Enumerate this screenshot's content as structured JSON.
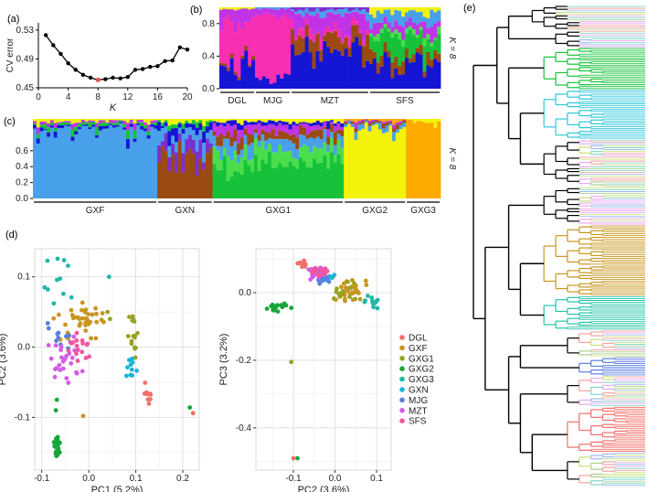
{
  "panel_labels": {
    "a": "(a)",
    "b": "(b)",
    "c": "(c)",
    "d": "(d)",
    "e": "(e)"
  },
  "chart_data": [
    {
      "id": "a",
      "type": "line",
      "xlabel": "K",
      "ylabel": "CV error",
      "x_ticks": [
        0,
        4,
        8,
        12,
        16,
        20
      ],
      "y_ticks": [
        0.45,
        0.49,
        0.53
      ],
      "xlim": [
        0,
        20
      ],
      "ylim": [
        0.45,
        0.54
      ],
      "x": [
        1,
        2,
        3,
        4,
        5,
        6,
        7,
        8,
        9,
        10,
        11,
        12,
        13,
        14,
        15,
        16,
        17,
        18,
        19,
        20
      ],
      "y": [
        0.523,
        0.509,
        0.497,
        0.484,
        0.475,
        0.468,
        0.464,
        0.461,
        0.462,
        0.464,
        0.463,
        0.465,
        0.475,
        0.476,
        0.479,
        0.48,
        0.487,
        0.488,
        0.506,
        0.503
      ],
      "highlight": {
        "x": 8,
        "y": 0.461,
        "color": "#e15759"
      }
    },
    {
      "id": "b",
      "type": "bar",
      "subtype": "stacked-admixture",
      "k_label": "K = 8",
      "y_ticks": [
        0.0,
        0.4,
        0.8
      ],
      "ylim": [
        0,
        1
      ],
      "groups": [
        {
          "label": "DGL",
          "n": 10
        },
        {
          "label": "MJG",
          "n": 10
        },
        {
          "label": "MZT",
          "n": 22
        },
        {
          "label": "SFS",
          "n": 20
        }
      ],
      "components": [
        "blue",
        "brown",
        "pink",
        "magenta",
        "green",
        "lightgreen",
        "yellow",
        "skyblue",
        "navy",
        "purple"
      ],
      "colors": {
        "blue": "#1515d4",
        "brown": "#9b4a11",
        "pink": "#f72fb0",
        "magenta": "#c034e6",
        "green": "#17c23a",
        "lightgreen": "#4cdd4c",
        "yellow": "#f2f20a",
        "skyblue": "#49a0ea",
        "navy": "#0d0d6e",
        "purple": "#7d2fd0",
        "orange": "#ffaa00"
      },
      "composition": [
        {
          "group": "DGL",
          "blue": 0.28,
          "brown": 0.04,
          "pink": 0.52,
          "magenta": 0.14,
          "yellow": 0.02
        },
        {
          "group": "MJG",
          "blue": 0.18,
          "pink": 0.72,
          "magenta": 0.08,
          "skyblue": 0.02
        },
        {
          "group": "MZT",
          "blue": 0.48,
          "brown": 0.18,
          "pink": 0.08,
          "magenta": 0.18,
          "skyblue": 0.05,
          "purple": 0.03
        },
        {
          "group": "SFS",
          "blue": 0.32,
          "brown": 0.12,
          "green": 0.2,
          "lightgreen": 0.06,
          "magenta": 0.12,
          "skyblue": 0.12,
          "yellow": 0.06
        }
      ]
    },
    {
      "id": "c",
      "type": "bar",
      "subtype": "stacked-admixture",
      "k_label": "K = 8",
      "y_ticks": [
        0.0,
        0.2,
        0.4,
        0.6
      ],
      "ylim": [
        0,
        1
      ],
      "groups": [
        {
          "label": "GXF",
          "n": 36
        },
        {
          "label": "GXN",
          "n": 16
        },
        {
          "label": "GXG1",
          "n": 38
        },
        {
          "label": "GXG2",
          "n": 18
        },
        {
          "label": "GXG3",
          "n": 10
        }
      ],
      "composition": [
        {
          "group": "GXF",
          "skyblue": 0.86,
          "blue": 0.04,
          "green": 0.04,
          "magenta": 0.03,
          "yellow": 0.03
        },
        {
          "group": "GXN",
          "brown": 0.52,
          "purple": 0.16,
          "skyblue": 0.16,
          "blue": 0.08,
          "green": 0.04,
          "yellow": 0.04
        },
        {
          "group": "GXG1",
          "green": 0.44,
          "lightgreen": 0.16,
          "skyblue": 0.14,
          "brown": 0.1,
          "magenta": 0.08,
          "blue": 0.04,
          "yellow": 0.04
        },
        {
          "group": "GXG2",
          "yellow": 0.88,
          "skyblue": 0.05,
          "brown": 0.03,
          "magenta": 0.02,
          "orange": 0.02
        },
        {
          "group": "GXG3",
          "orange": 0.96,
          "yellow": 0.04
        }
      ]
    },
    {
      "id": "d1",
      "type": "scatter",
      "xlabel": "PC1 (5.2%)",
      "ylabel": "PC2 (3.6%)",
      "x_ticks": [
        -0.1,
        0.0,
        0.1,
        0.2
      ],
      "x_tick_labels": [
        "-0.1",
        "0.0",
        "0.1",
        "0.2"
      ],
      "y_ticks": [
        -0.1,
        0.0,
        0.1
      ],
      "y_tick_labels": [
        "-0.1",
        "0.0",
        "0.1"
      ],
      "xlim": [
        -0.115,
        0.235
      ],
      "ylim": [
        -0.175,
        0.14
      ],
      "clusters": [
        {
          "name": "DGL",
          "cx": 0.123,
          "cy": -0.07,
          "sx": 0.008,
          "sy": 0.01,
          "n": 10,
          "extra": [
            [
              0.222,
              -0.094
            ]
          ]
        },
        {
          "name": "GXF",
          "cx": -0.01,
          "cy": 0.04,
          "sx": 0.035,
          "sy": 0.018,
          "n": 38,
          "extra": [
            [
              -0.012,
              -0.098
            ]
          ]
        },
        {
          "name": "GXG1",
          "cx": 0.095,
          "cy": 0.01,
          "sx": 0.007,
          "sy": 0.022,
          "n": 16,
          "extra": [
            [
              0.04,
              0.05
            ],
            [
              0.045,
              0.04
            ]
          ]
        },
        {
          "name": "GXG2",
          "cx": -0.068,
          "cy": -0.145,
          "sx": 0.006,
          "sy": 0.013,
          "n": 20,
          "extra": [
            [
              -0.07,
              -0.09
            ],
            [
              -0.068,
              -0.075
            ],
            [
              0.215,
              -0.086
            ]
          ]
        },
        {
          "name": "GXG3",
          "cx": -0.065,
          "cy": 0.09,
          "sx": 0.02,
          "sy": 0.02,
          "n": 10,
          "extra": [
            [
              -0.088,
              0.123
            ],
            [
              0.043,
              0.1
            ]
          ]
        },
        {
          "name": "GXN",
          "cx": 0.09,
          "cy": -0.03,
          "sx": 0.008,
          "sy": 0.015,
          "n": 10,
          "extra": []
        },
        {
          "name": "MJG",
          "cx": -0.06,
          "cy": 0.005,
          "sx": 0.018,
          "sy": 0.02,
          "n": 10,
          "extra": []
        },
        {
          "name": "MZT",
          "cx": -0.05,
          "cy": -0.015,
          "sx": 0.02,
          "sy": 0.02,
          "n": 26,
          "extra": []
        },
        {
          "name": "SFS",
          "cx": -0.025,
          "cy": -0.005,
          "sx": 0.018,
          "sy": 0.016,
          "n": 16,
          "extra": []
        }
      ]
    },
    {
      "id": "d2",
      "type": "scatter",
      "xlabel": "PC2 (3.6%)",
      "ylabel": "PC3 (3.2%)",
      "x_ticks": [
        -0.1,
        0.0,
        0.1
      ],
      "x_tick_labels": [
        "-0.1",
        "0.0",
        "0.1"
      ],
      "y_ticks": [
        0.0,
        -0.2,
        -0.4
      ],
      "y_tick_labels": [
        "0.0",
        "-0.2",
        "-0.4"
      ],
      "xlim": [
        -0.19,
        0.135
      ],
      "ylim": [
        -0.525,
        0.13
      ],
      "clusters": [
        {
          "name": "DGL",
          "cx": -0.08,
          "cy": 0.08,
          "sx": 0.008,
          "sy": 0.012,
          "n": 10,
          "extra": [
            [
              -0.1,
              -0.49
            ]
          ]
        },
        {
          "name": "GXF",
          "cx": 0.035,
          "cy": 0.005,
          "sx": 0.025,
          "sy": 0.02,
          "n": 30,
          "extra": []
        },
        {
          "name": "GXG1",
          "cx": 0.02,
          "cy": 0.01,
          "sx": 0.025,
          "sy": 0.02,
          "n": 14,
          "extra": [
            [
              -0.105,
              -0.205
            ]
          ]
        },
        {
          "name": "GXG2",
          "cx": -0.14,
          "cy": -0.045,
          "sx": 0.018,
          "sy": 0.008,
          "n": 16,
          "extra": [
            [
              -0.105,
              -0.045
            ],
            [
              -0.09,
              -0.49
            ]
          ]
        },
        {
          "name": "GXG3",
          "cx": 0.09,
          "cy": -0.03,
          "sx": 0.015,
          "sy": 0.012,
          "n": 12,
          "extra": []
        },
        {
          "name": "GXN",
          "cx": -0.02,
          "cy": 0.05,
          "sx": 0.015,
          "sy": 0.012,
          "n": 8,
          "extra": []
        },
        {
          "name": "MJG",
          "cx": -0.03,
          "cy": 0.045,
          "sx": 0.018,
          "sy": 0.012,
          "n": 10,
          "extra": []
        },
        {
          "name": "MZT",
          "cx": -0.04,
          "cy": 0.06,
          "sx": 0.018,
          "sy": 0.012,
          "n": 24,
          "extra": []
        },
        {
          "name": "SFS",
          "cx": -0.03,
          "cy": 0.065,
          "sx": 0.018,
          "sy": 0.01,
          "n": 14,
          "extra": []
        }
      ]
    },
    {
      "id": "e",
      "type": "tree",
      "description_units": "leaf ranges in leaf index; depth in branch units",
      "n_leaves": 252,
      "max_depth": 14,
      "subtrees": [
        {
          "lo": 0,
          "hi": 13,
          "d": 5,
          "c": "#000000",
          "mix": true
        },
        {
          "lo": 13,
          "hi": 22,
          "d": 7,
          "c": "#000000",
          "mix": true
        },
        {
          "lo": 22,
          "hi": 44,
          "d": 6,
          "c": "#17c23a"
        },
        {
          "lo": 44,
          "hi": 70,
          "d": 6,
          "c": "#2ec7d8"
        },
        {
          "lo": 70,
          "hi": 95,
          "d": 6,
          "c": "#000000",
          "mix": true
        },
        {
          "lo": 95,
          "hi": 115,
          "d": 6,
          "c": "#000000",
          "mix": true
        },
        {
          "lo": 115,
          "hi": 152,
          "d": 6,
          "c": "#c8961e"
        },
        {
          "lo": 152,
          "hi": 170,
          "d": 6,
          "c": "#22c4a8"
        },
        {
          "lo": 170,
          "hi": 184,
          "d": 8,
          "c": "#000000",
          "mix": true
        },
        {
          "lo": 184,
          "hi": 194,
          "d": 9,
          "c": "#5b7fe0"
        },
        {
          "lo": 194,
          "hi": 210,
          "d": 8,
          "c": "#000000",
          "mix": true
        },
        {
          "lo": 210,
          "hi": 234,
          "d": 8,
          "c": "#f0706a"
        },
        {
          "lo": 234,
          "hi": 252,
          "d": 8,
          "c": "#000000",
          "mix": true
        }
      ],
      "leaf_palette": [
        "#e9a8f0",
        "#a8d08d",
        "#9bb9ee",
        "#f4a3a0",
        "#7fd6c8",
        "#c9e07a"
      ]
    }
  ],
  "legend": {
    "items": [
      {
        "label": "DGL",
        "color": "#f0706a"
      },
      {
        "label": "GXF",
        "color": "#c8961e"
      },
      {
        "label": "GXG1",
        "color": "#98a323"
      },
      {
        "label": "GXG2",
        "color": "#17a63a"
      },
      {
        "label": "GXG3",
        "color": "#22b8a8"
      },
      {
        "label": "GXN",
        "color": "#1fb3d8"
      },
      {
        "label": "MJG",
        "color": "#5b7fe0"
      },
      {
        "label": "MZT",
        "color": "#d45ce8"
      },
      {
        "label": "SFS",
        "color": "#f0569e"
      }
    ]
  }
}
